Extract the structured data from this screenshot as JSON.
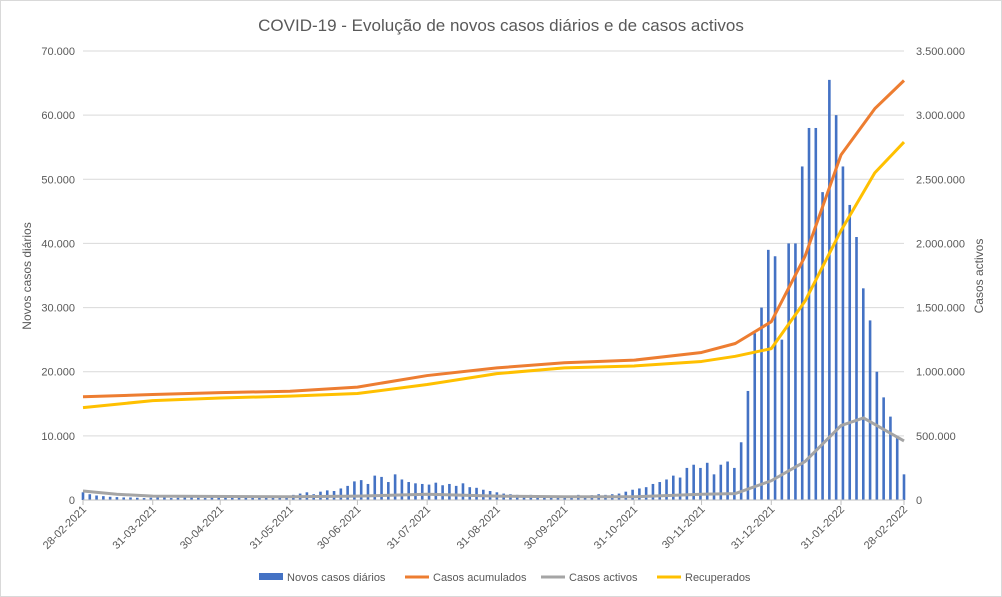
{
  "chart_data": {
    "type": "bar+line",
    "title": "COVID-19 - Evolução de novos casos diários e de casos activos",
    "ylabel": "Novos casos diários",
    "y2label": "Casos activos",
    "ylim": [
      0,
      70000
    ],
    "y2lim": [
      0,
      3500000
    ],
    "yticks": [
      "0",
      "10.000",
      "20.000",
      "30.000",
      "40.000",
      "50.000",
      "60.000",
      "70.000"
    ],
    "y2ticks": [
      "0",
      "500.000",
      "1.000.000",
      "1.500.000",
      "2.000.000",
      "2.500.000",
      "3.000.000",
      "3.500.000"
    ],
    "xticks": [
      {
        "label": "28-02-2021",
        "day": 0
      },
      {
        "label": "31-03-2021",
        "day": 31
      },
      {
        "label": "30-04-2021",
        "day": 61
      },
      {
        "label": "31-05-2021",
        "day": 92
      },
      {
        "label": "30-06-2021",
        "day": 122
      },
      {
        "label": "31-07-2021",
        "day": 153
      },
      {
        "label": "31-08-2021",
        "day": 184
      },
      {
        "label": "30-09-2021",
        "day": 214
      },
      {
        "label": "31-10-2021",
        "day": 245
      },
      {
        "label": "30-11-2021",
        "day": 275
      },
      {
        "label": "31-12-2021",
        "day": 306
      },
      {
        "label": "31-01-2022",
        "day": 337
      },
      {
        "label": "28-02-2022",
        "day": 365
      }
    ],
    "grid": true,
    "legend_position": "bottom",
    "bars": {
      "name": "Novos casos diários",
      "color": "#4472c4",
      "axis": "left",
      "sampling_days": 3,
      "values": [
        1200,
        900,
        700,
        600,
        500,
        450,
        400,
        400,
        350,
        300,
        350,
        400,
        400,
        300,
        350,
        400,
        450,
        350,
        300,
        400,
        350,
        400,
        450,
        400,
        350,
        400,
        500,
        450,
        400,
        500,
        600,
        800,
        1000,
        1200,
        900,
        1300,
        1500,
        1400,
        1800,
        2200,
        2900,
        3100,
        2500,
        3800,
        3600,
        2800,
        4000,
        3200,
        2800,
        2600,
        2500,
        2400,
        2700,
        2300,
        2500,
        2200,
        2600,
        2000,
        1900,
        1600,
        1400,
        1200,
        1000,
        900,
        800,
        700,
        800,
        700,
        600,
        700,
        600,
        700,
        600,
        800,
        700,
        750,
        900,
        800,
        900,
        1000,
        1300,
        1600,
        1800,
        2000,
        2500,
        2800,
        3200,
        3800,
        3500,
        5000,
        5500,
        5000,
        5800,
        4000,
        5500,
        6000,
        5000,
        9000,
        17000,
        26000,
        30000,
        39000,
        38000,
        25000,
        40000,
        40000,
        52000,
        58000,
        58000,
        48000,
        65500,
        60000,
        52000,
        46000,
        41000,
        33000,
        28000,
        20000,
        16000,
        13000,
        10000,
        4000
      ]
    },
    "series": [
      {
        "name": "Casos acumulados",
        "color": "#ed7d31",
        "axis": "right",
        "days": [
          0,
          31,
          61,
          92,
          122,
          153,
          184,
          214,
          245,
          275,
          290,
          306,
          321,
          337,
          352,
          365
        ],
        "values": [
          805000,
          822000,
          837000,
          848000,
          880000,
          970000,
          1030000,
          1070000,
          1090000,
          1150000,
          1220000,
          1390000,
          1900000,
          2690000,
          3050000,
          3270000
        ]
      },
      {
        "name": "Casos activos",
        "color": "#a5a5a5",
        "axis": "right",
        "days": [
          0,
          15,
          31,
          92,
          122,
          153,
          184,
          214,
          245,
          275,
          290,
          306,
          321,
          337,
          347,
          365
        ],
        "values": [
          70000,
          45000,
          30000,
          25000,
          30000,
          45000,
          30000,
          25000,
          25000,
          45000,
          50000,
          150000,
          300000,
          580000,
          640000,
          460000
        ]
      },
      {
        "name": "Recuperados",
        "color": "#ffc000",
        "axis": "right",
        "days": [
          0,
          31,
          61,
          92,
          122,
          153,
          184,
          214,
          245,
          275,
          290,
          306,
          321,
          337,
          352,
          365
        ],
        "values": [
          720000,
          775000,
          795000,
          810000,
          830000,
          900000,
          985000,
          1030000,
          1045000,
          1080000,
          1120000,
          1180000,
          1550000,
          2100000,
          2550000,
          2790000
        ]
      }
    ]
  }
}
